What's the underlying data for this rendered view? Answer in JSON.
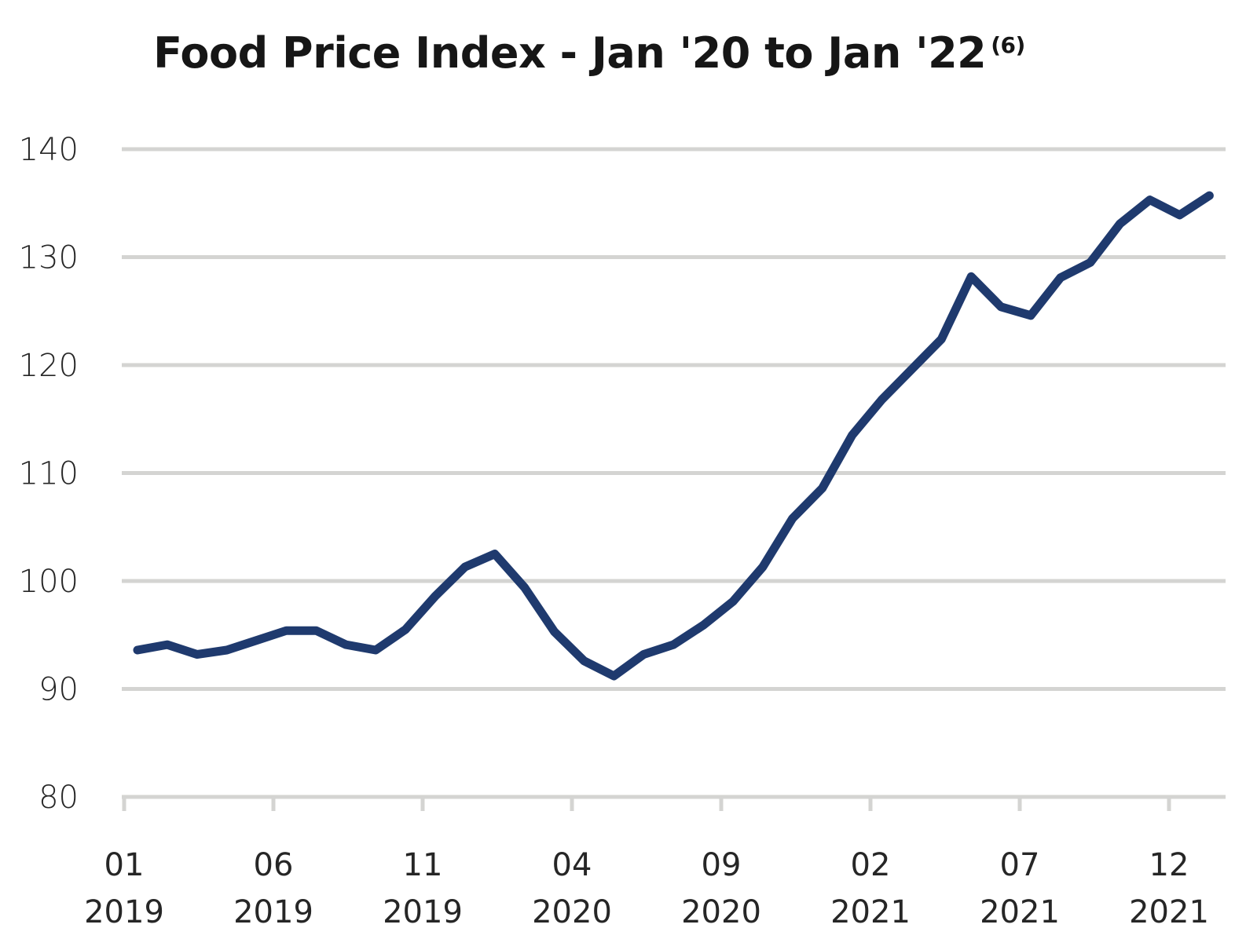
{
  "chart_data": {
    "type": "line",
    "title": "Food Price Index - Jan '20 to Jan '22",
    "title_footnote": "(6)",
    "xlabel": "",
    "ylabel": "",
    "ylim": [
      80,
      140
    ],
    "yticks": [
      80,
      90,
      100,
      110,
      120,
      130,
      140
    ],
    "grid": true,
    "x_tick_labels": [
      {
        "month": "01",
        "year": "2019"
      },
      {
        "month": "06",
        "year": "2019"
      },
      {
        "month": "11",
        "year": "2019"
      },
      {
        "month": "04",
        "year": "2020"
      },
      {
        "month": "09",
        "year": "2020"
      },
      {
        "month": "02",
        "year": "2021"
      },
      {
        "month": "07",
        "year": "2021"
      },
      {
        "month": "12",
        "year": "2021"
      }
    ],
    "x": [
      "2019-01",
      "2019-02",
      "2019-03",
      "2019-04",
      "2019-05",
      "2019-06",
      "2019-07",
      "2019-08",
      "2019-09",
      "2019-10",
      "2019-11",
      "2019-12",
      "2020-01",
      "2020-02",
      "2020-03",
      "2020-04",
      "2020-05",
      "2020-06",
      "2020-07",
      "2020-08",
      "2020-09",
      "2020-10",
      "2020-11",
      "2020-12",
      "2021-01",
      "2021-02",
      "2021-03",
      "2021-04",
      "2021-05",
      "2021-06",
      "2021-07",
      "2021-08",
      "2021-09",
      "2021-10",
      "2021-11",
      "2021-12",
      "2022-01"
    ],
    "series": [
      {
        "color": "#1f3a6e",
        "values": [
          93.6,
          94.1,
          93.2,
          93.6,
          94.5,
          95.4,
          95.4,
          94.1,
          93.6,
          95.5,
          98.6,
          101.3,
          102.5,
          99.4,
          95.3,
          92.6,
          91.2,
          93.2,
          94.1,
          95.9,
          98.1,
          101.3,
          105.8,
          108.6,
          113.5,
          116.8,
          119.6,
          122.4,
          128.2,
          125.4,
          124.6,
          128.1,
          129.5,
          133.1,
          135.3,
          133.9,
          135.7
        ]
      }
    ],
    "colors": {
      "line": "#1f3a6e",
      "grid": "#d4d4d2",
      "axis": "#d4d4d2",
      "text": "#262626"
    }
  }
}
